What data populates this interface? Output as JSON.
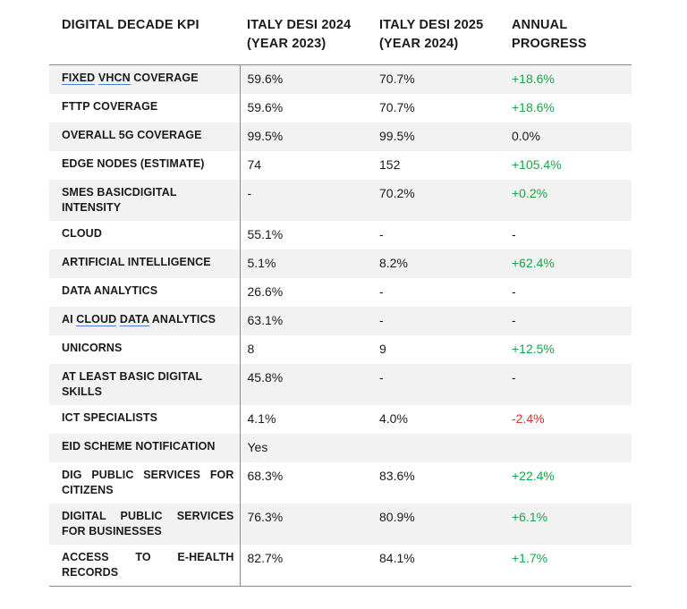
{
  "headers": {
    "kpi": "DIGITAL DECADE KPI",
    "y2023_line1": "ITALY DESI 2024",
    "y2023_line2": "(YEAR 2023)",
    "y2024_line1": "ITALY DESI 2025",
    "y2024_line2": "(YEAR 2024)",
    "progress_line1": "ANNUAL",
    "progress_line2": "PROGRESS"
  },
  "rows": [
    {
      "kpi": "FIXED VHCN COVERAGE",
      "y2023": "59.6%",
      "y2024": "70.7%",
      "progress": "+18.6%",
      "status": "pos"
    },
    {
      "kpi": "FTTP COVERAGE",
      "y2023": "59.6%",
      "y2024": "70.7%",
      "progress": "+18.6%",
      "status": "pos"
    },
    {
      "kpi": "OVERALL 5G COVERAGE",
      "y2023": "99.5%",
      "y2024": "99.5%",
      "progress": "0.0%",
      "status": "neu"
    },
    {
      "kpi": "EDGE NODES (ESTIMATE)",
      "y2023": "74",
      "y2024": "152",
      "progress": "+105.4%",
      "status": "pos"
    },
    {
      "kpi": "SMES BASICDIGITAL INTENSITY",
      "y2023": "-",
      "y2024": "70.2%",
      "progress": "+0.2%",
      "status": "pos"
    },
    {
      "kpi": "CLOUD",
      "y2023": "55.1%",
      "y2024": "-",
      "progress": "-",
      "status": "neu"
    },
    {
      "kpi": "ARTIFICIAL INTELLIGENCE",
      "y2023": "5.1%",
      "y2024": "8.2%",
      "progress": "+62.4%",
      "status": "pos"
    },
    {
      "kpi": "DATA ANALYTICS",
      "y2023": "26.6%",
      "y2024": "-",
      "progress": "-",
      "status": "neu"
    },
    {
      "kpi": "AI CLOUD DATA ANALYTICS",
      "y2023": "63.1%",
      "y2024": "-",
      "progress": "-",
      "status": "neu"
    },
    {
      "kpi": "UNICORNS",
      "y2023": "8",
      "y2024": "9",
      "progress": "+12.5%",
      "status": "pos"
    },
    {
      "kpi": "AT LEAST BASIC DIGITAL SKILLS",
      "y2023": "45.8%",
      "y2024": "-",
      "progress": "-",
      "status": "neu"
    },
    {
      "kpi": "ICT SPECIALISTS",
      "y2023": "4.1%",
      "y2024": "4.0%",
      "progress": "-2.4%",
      "status": "neg"
    },
    {
      "kpi": "EID SCHEME NOTIFICATION",
      "y2023": "Yes",
      "y2024": "",
      "progress": "",
      "status": "neu"
    },
    {
      "kpi": "DIG PUBLIC SERVICES FOR CITIZENS",
      "y2023": "68.3%",
      "y2024": "83.6%",
      "progress": "+22.4%",
      "status": "pos"
    },
    {
      "kpi": "DIGITAL PUBLIC SERVICES FOR BUSINESSES",
      "y2023": "76.3%",
      "y2024": "80.9%",
      "progress": "+6.1%",
      "status": "pos"
    },
    {
      "kpi": "ACCESS TO E-HEALTH RECORDS",
      "y2023": "82.7%",
      "y2024": "84.1%",
      "progress": "+1.7%",
      "status": "pos"
    }
  ],
  "colors": {
    "positive": "#1aa348",
    "negative": "#d93025",
    "shade": "#f2f2f2"
  }
}
